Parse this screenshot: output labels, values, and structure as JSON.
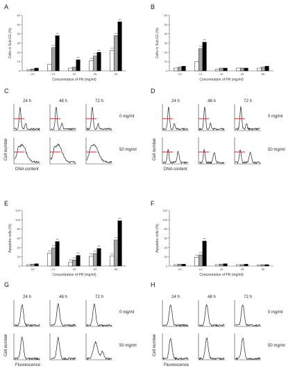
{
  "panels": {
    "A": "A",
    "B": "B",
    "C": "C",
    "D": "D",
    "E": "E",
    "F": "F",
    "G": "G",
    "H": "H"
  },
  "time_labels": [
    "24 h",
    "48 h",
    "72 h"
  ],
  "dose_labels": [
    "0 mg/ml",
    "50 mg/ml"
  ],
  "hist_axes": {
    "cell_number": "Cell number",
    "dna_content": "DNA content",
    "fluorescence": "Fluorescence"
  },
  "colors": {
    "bar_24h": "#ffffff",
    "bar_48h": "#a6a6a6",
    "bar_72h": "#000000",
    "gate_line": "#e02020"
  },
  "chart_data": [
    {
      "panel": "A",
      "type": "bar",
      "categories": [
        "C0",
        "C1",
        "10",
        "25",
        "50"
      ],
      "series": [
        {
          "values": [
            1,
            7,
            3,
            11,
            22
          ]
        },
        {
          "values": [
            2,
            25,
            4,
            16,
            38
          ]
        },
        {
          "values": [
            3,
            38,
            12,
            20,
            53
          ]
        }
      ],
      "ylim": [
        0,
        60
      ],
      "yticks": [
        0,
        10,
        20,
        30,
        40,
        50,
        60
      ],
      "ylabel": "Cells in Sub-G1 (%)",
      "xlabel": "Concentration of PR (mg/ml)",
      "significance": [
        {
          "category": 1,
          "series": 1,
          "text": "***"
        },
        {
          "category": 1,
          "series": 2,
          "text": "***"
        },
        {
          "category": 2,
          "series": 2,
          "text": "***"
        },
        {
          "category": 3,
          "series": 0,
          "text": "***"
        },
        {
          "category": 3,
          "series": 1,
          "text": "***"
        },
        {
          "category": 3,
          "series": 2,
          "text": "***"
        },
        {
          "category": 4,
          "series": 0,
          "text": "***"
        },
        {
          "category": 4,
          "series": 1,
          "text": "***"
        },
        {
          "category": 4,
          "series": 2,
          "text": "***"
        }
      ]
    },
    {
      "panel": "B",
      "type": "bar",
      "categories": [
        "C0",
        "C1",
        "10",
        "25",
        "50"
      ],
      "series": [
        {
          "values": [
            3,
            10,
            2,
            3,
            3
          ]
        },
        {
          "values": [
            4,
            24,
            3,
            3,
            4
          ]
        },
        {
          "values": [
            5,
            31,
            3,
            3,
            5
          ]
        }
      ],
      "ylim": [
        0,
        60
      ],
      "yticks": [
        0,
        10,
        20,
        30,
        40,
        50,
        60
      ],
      "ylabel": "Cells in Sub-G1 (%)",
      "xlabel": "Concentration of PR (mg/ml)",
      "significance": [
        {
          "category": 1,
          "series": 1,
          "text": "***"
        },
        {
          "category": 1,
          "series": 2,
          "text": "***"
        }
      ]
    },
    {
      "panel": "E",
      "type": "bar",
      "categories": [
        "C0",
        "C1",
        "10",
        "25",
        "50"
      ],
      "series": [
        {
          "values": [
            3,
            28,
            8,
            21,
            22
          ]
        },
        {
          "values": [
            4,
            39,
            13,
            27,
            56
          ]
        },
        {
          "values": [
            5,
            53,
            23,
            38,
            98
          ]
        }
      ],
      "ylim": [
        0,
        120
      ],
      "yticks": [
        0,
        20,
        40,
        60,
        80,
        100,
        120
      ],
      "ylabel": "Apoptotic cells (%)",
      "xlabel": "Concentration of PR (mg/ml)",
      "significance": [
        {
          "category": 1,
          "series": 0,
          "text": "***"
        },
        {
          "category": 1,
          "series": 1,
          "text": "***"
        },
        {
          "category": 1,
          "series": 2,
          "text": "***"
        },
        {
          "category": 2,
          "series": 0,
          "text": "***"
        },
        {
          "category": 2,
          "series": 1,
          "text": "***"
        },
        {
          "category": 2,
          "series": 2,
          "text": "***"
        },
        {
          "category": 3,
          "series": 0,
          "text": "***"
        },
        {
          "category": 3,
          "series": 1,
          "text": "***"
        },
        {
          "category": 3,
          "series": 2,
          "text": "***"
        },
        {
          "category": 4,
          "series": 0,
          "text": "***"
        },
        {
          "category": 4,
          "series": 1,
          "text": "***"
        },
        {
          "category": 4,
          "series": 2,
          "text": "***"
        }
      ]
    },
    {
      "panel": "F",
      "type": "bar",
      "categories": [
        "C0",
        "C1",
        "10",
        "25",
        "50"
      ],
      "series": [
        {
          "values": [
            3,
            19,
            3,
            3,
            2
          ]
        },
        {
          "values": [
            4,
            24,
            4,
            3,
            3
          ]
        },
        {
          "values": [
            4,
            54,
            5,
            4,
            3
          ]
        }
      ],
      "ylim": [
        0,
        120
      ],
      "yticks": [
        0,
        20,
        40,
        60,
        80,
        100,
        120
      ],
      "ylabel": "Apoptotic cells (%)",
      "xlabel": "Concentration of PR (mg/ml)",
      "significance": [
        {
          "category": 1,
          "series": 0,
          "text": "***"
        },
        {
          "category": 1,
          "series": 1,
          "text": "***"
        },
        {
          "category": 1,
          "series": 2,
          "text": "***"
        }
      ]
    }
  ]
}
